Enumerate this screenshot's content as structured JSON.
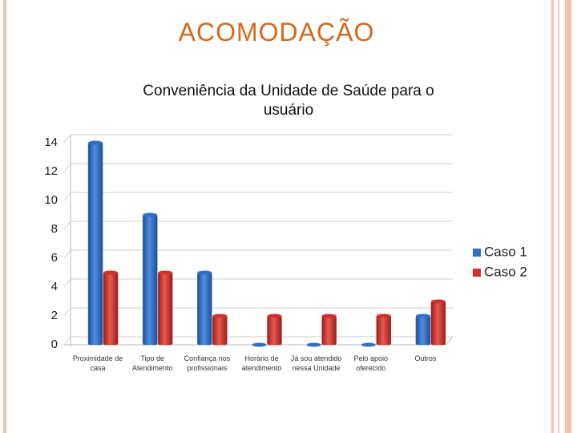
{
  "slide_title": "ACOMODAÇÃO",
  "chart_data": {
    "type": "bar",
    "title": "Conveniência da Unidade de Saúde para o usuário",
    "categories": [
      "Proximidade de casa",
      "Tipo de Atendimento",
      "Confiança nos profissionais",
      "Horário de atendimento",
      "Já sou atendido nessa Unidade",
      "Pelo apoio oferecido",
      "Outros"
    ],
    "series": [
      {
        "name": "Caso 1",
        "color": "#2f6fc6",
        "values": [
          14,
          9,
          5,
          0,
          0,
          0,
          2
        ]
      },
      {
        "name": "Caso 2",
        "color": "#d1302b",
        "values": [
          5,
          5,
          2,
          2,
          2,
          2,
          3
        ]
      }
    ],
    "ylim": [
      0,
      14
    ],
    "yticks": [
      0,
      2,
      4,
      6,
      8,
      10,
      12,
      14
    ],
    "grid": true,
    "legend": "right"
  }
}
